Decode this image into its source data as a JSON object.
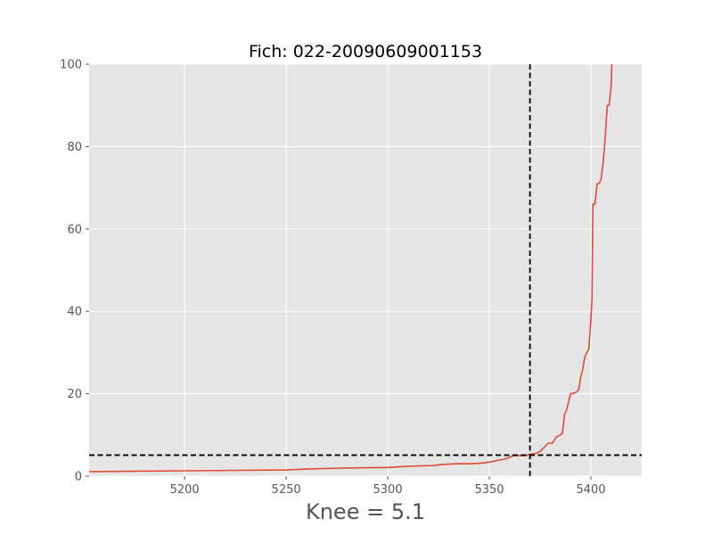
{
  "chart_data": {
    "type": "line",
    "title": "Fich: 022-20090609001153",
    "xlabel": "Knee = 5.1",
    "ylabel": "",
    "xlim": [
      5153,
      5425
    ],
    "ylim": [
      0,
      100
    ],
    "xticks": [
      5200,
      5250,
      5300,
      5350,
      5400
    ],
    "yticks": [
      0,
      20,
      40,
      60,
      80,
      100
    ],
    "grid": true,
    "style": "ggplot",
    "line_color": "#E24A33",
    "reference_lines": {
      "vertical_x": 5370,
      "horizontal_y": 5.1,
      "style": "dashed",
      "color": "#000000"
    },
    "series": [
      {
        "x": [
          5153,
          5200,
          5250,
          5260,
          5265,
          5280,
          5300,
          5310,
          5323,
          5326,
          5333,
          5340,
          5345,
          5350,
          5355,
          5358,
          5360,
          5362,
          5365,
          5368,
          5370,
          5373,
          5375,
          5377,
          5379,
          5381,
          5383,
          5385,
          5386,
          5387,
          5388,
          5389,
          5390,
          5392,
          5393,
          5394,
          5395,
          5396,
          5397,
          5398,
          5399,
          5400,
          5400.5,
          5401,
          5401.5,
          5402,
          5403,
          5404,
          5405,
          5406,
          5407,
          5408,
          5409,
          5410,
          5410.3
        ],
        "y": [
          1.1,
          1.3,
          1.5,
          1.7,
          1.8,
          2.0,
          2.1,
          2.4,
          2.6,
          2.8,
          3.0,
          3.0,
          3.1,
          3.4,
          3.9,
          4.2,
          4.6,
          5.0,
          5.0,
          5.0,
          5.3,
          5.5,
          6.0,
          7.0,
          8.0,
          8.0,
          9.5,
          10.0,
          10.5,
          15.0,
          16.0,
          18.0,
          20.0,
          20.2,
          20.5,
          21.0,
          24.0,
          26.0,
          29.0,
          30.0,
          31.0,
          38.0,
          43.0,
          66.0,
          66.0,
          66.0,
          71.0,
          71.0,
          72.0,
          76.0,
          82.0,
          90.0,
          90.0,
          95.0,
          100.0
        ]
      }
    ]
  }
}
